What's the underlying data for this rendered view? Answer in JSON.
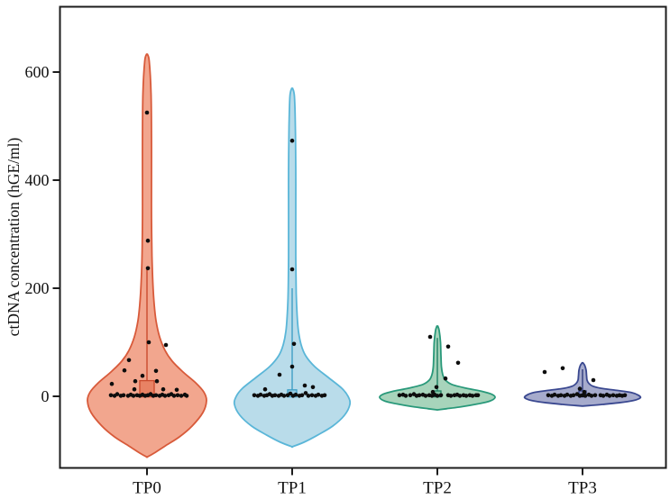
{
  "figure": {
    "background": "#ffffff",
    "frame_color": "#1c1c1c"
  },
  "chart_data": {
    "type": "violin",
    "title": "",
    "xlabel": "",
    "ylabel": "ctDNA concentration (hGE/ml)",
    "categories": [
      "TP0",
      "TP1",
      "TP2",
      "TP3"
    ],
    "yticks": [
      0,
      200,
      400,
      600
    ],
    "ylim": [
      -130,
      720
    ],
    "grid": false,
    "legend": false,
    "point_color": "#0d0d0d",
    "groups": [
      {
        "name": "TP0",
        "fill": "#f2a68e",
        "stroke": "#d85a3a",
        "box_fill": "#e88264",
        "box_stroke": "#c94a2d",
        "box": {
          "lo": -1,
          "hi": 29,
          "halfwidth": 8
        },
        "whisker": {
          "lo": 29,
          "hi": 237
        },
        "profile": [
          [
            633,
            0.5
          ],
          [
            620,
            2.5
          ],
          [
            560,
            4.5
          ],
          [
            480,
            5
          ],
          [
            400,
            5
          ],
          [
            330,
            5
          ],
          [
            260,
            5.5
          ],
          [
            210,
            6.5
          ],
          [
            170,
            8
          ],
          [
            140,
            10
          ],
          [
            110,
            14
          ],
          [
            85,
            20
          ],
          [
            65,
            28
          ],
          [
            45,
            40
          ],
          [
            25,
            54
          ],
          [
            8,
            63
          ],
          [
            -8,
            66
          ],
          [
            -30,
            62
          ],
          [
            -55,
            50
          ],
          [
            -75,
            36
          ],
          [
            -92,
            20
          ],
          [
            -105,
            8
          ],
          [
            -112,
            0.5
          ]
        ],
        "points": [
          [
            0,
            525
          ],
          [
            1,
            288
          ],
          [
            1,
            237
          ],
          [
            2,
            100
          ],
          [
            21,
            95
          ],
          [
            -20,
            67
          ],
          [
            -25,
            48
          ],
          [
            10,
            47
          ],
          [
            -5,
            38
          ],
          [
            -13,
            28
          ],
          [
            11,
            28
          ],
          [
            -39,
            23
          ],
          [
            -14,
            13
          ],
          [
            18,
            13
          ],
          [
            33,
            12
          ],
          [
            -40,
            2
          ],
          [
            -36,
            1
          ],
          [
            -33,
            4
          ],
          [
            -29,
            1
          ],
          [
            -26,
            2
          ],
          [
            -21,
            1
          ],
          [
            -18,
            3
          ],
          [
            -15,
            1
          ],
          [
            -11,
            2
          ],
          [
            -8,
            1
          ],
          [
            -5,
            3
          ],
          [
            -2,
            1
          ],
          [
            1,
            2
          ],
          [
            4,
            4
          ],
          [
            7,
            1
          ],
          [
            10,
            2
          ],
          [
            14,
            1
          ],
          [
            17,
            3
          ],
          [
            20,
            1
          ],
          [
            24,
            2
          ],
          [
            27,
            4
          ],
          [
            30,
            1
          ],
          [
            34,
            2
          ],
          [
            38,
            1
          ],
          [
            42,
            3
          ],
          [
            44,
            1
          ]
        ]
      },
      {
        "name": "TP1",
        "fill": "#b9dcea",
        "stroke": "#5ab6d8",
        "box_fill": "#93c9e0",
        "box_stroke": "#3f9fc6",
        "box": {
          "lo": -1,
          "hi": 12,
          "halfwidth": 5
        },
        "whisker": {
          "lo": 12,
          "hi": 200
        },
        "profile": [
          [
            570,
            0.5
          ],
          [
            555,
            2.5
          ],
          [
            500,
            3.5
          ],
          [
            420,
            4
          ],
          [
            340,
            4
          ],
          [
            260,
            4
          ],
          [
            190,
            4.5
          ],
          [
            150,
            5.5
          ],
          [
            120,
            7
          ],
          [
            95,
            10
          ],
          [
            75,
            15
          ],
          [
            55,
            25
          ],
          [
            35,
            40
          ],
          [
            15,
            55
          ],
          [
            0,
            62
          ],
          [
            -15,
            64
          ],
          [
            -35,
            58
          ],
          [
            -55,
            45
          ],
          [
            -72,
            28
          ],
          [
            -85,
            13
          ],
          [
            -93,
            0.5
          ]
        ],
        "points": [
          [
            0,
            473
          ],
          [
            0,
            235
          ],
          [
            2,
            97
          ],
          [
            0,
            55
          ],
          [
            -14,
            40
          ],
          [
            14,
            20
          ],
          [
            23,
            17
          ],
          [
            -30,
            13
          ],
          [
            -42,
            2
          ],
          [
            -38,
            1
          ],
          [
            -35,
            3
          ],
          [
            -31,
            1
          ],
          [
            -28,
            2
          ],
          [
            -25,
            4
          ],
          [
            -22,
            1
          ],
          [
            -19,
            2
          ],
          [
            -15,
            1
          ],
          [
            -12,
            3
          ],
          [
            -9,
            1
          ],
          [
            -5,
            2
          ],
          [
            -2,
            5
          ],
          [
            1,
            1
          ],
          [
            4,
            3
          ],
          [
            8,
            1
          ],
          [
            11,
            2
          ],
          [
            15,
            6
          ],
          [
            18,
            1
          ],
          [
            22,
            2
          ],
          [
            26,
            1
          ],
          [
            29,
            3
          ],
          [
            33,
            1
          ],
          [
            36,
            2
          ]
        ]
      },
      {
        "name": "TP2",
        "fill": "#a7d4bb",
        "stroke": "#29997a",
        "box_fill": "#82c2a3",
        "box_stroke": "#1f8265",
        "box": {
          "lo": -1,
          "hi": 10,
          "halfwidth": 4
        },
        "whisker": {
          "lo": 10,
          "hi": 108
        },
        "profile": [
          [
            130,
            0.5
          ],
          [
            122,
            2
          ],
          [
            100,
            3.5
          ],
          [
            75,
            4
          ],
          [
            55,
            4.5
          ],
          [
            40,
            6
          ],
          [
            30,
            9
          ],
          [
            22,
            16
          ],
          [
            15,
            32
          ],
          [
            9,
            50
          ],
          [
            4,
            60
          ],
          [
            -2,
            64
          ],
          [
            -9,
            58
          ],
          [
            -14,
            45
          ],
          [
            -19,
            28
          ],
          [
            -23,
            10
          ],
          [
            -25,
            0.5
          ]
        ],
        "points": [
          [
            -8,
            110
          ],
          [
            12,
            92
          ],
          [
            23,
            62
          ],
          [
            9,
            33
          ],
          [
            -1,
            17
          ],
          [
            -5,
            8
          ],
          [
            -42,
            2
          ],
          [
            -38,
            3
          ],
          [
            -35,
            1
          ],
          [
            -30,
            2
          ],
          [
            -26,
            4
          ],
          [
            -23,
            1
          ],
          [
            -20,
            2
          ],
          [
            -16,
            3
          ],
          [
            -13,
            1
          ],
          [
            -9,
            2
          ],
          [
            -6,
            1
          ],
          [
            -3,
            3
          ],
          [
            0,
            1
          ],
          [
            4,
            2
          ],
          [
            12,
            2
          ],
          [
            15,
            1
          ],
          [
            19,
            2
          ],
          [
            22,
            3
          ],
          [
            25,
            1
          ],
          [
            29,
            2
          ],
          [
            32,
            1
          ],
          [
            36,
            2
          ],
          [
            39,
            1
          ],
          [
            43,
            2
          ],
          [
            45,
            2
          ]
        ]
      },
      {
        "name": "TP3",
        "fill": "#a6abcc",
        "stroke": "#3a4890",
        "box_fill": "#8a91be",
        "box_stroke": "#2e3a7c",
        "box": {
          "lo": -1,
          "hi": 10,
          "halfwidth": 4
        },
        "whisker": {
          "lo": 10,
          "hi": 50
        },
        "profile": [
          [
            62,
            0.5
          ],
          [
            57,
            2.5
          ],
          [
            48,
            4
          ],
          [
            38,
            4.5
          ],
          [
            30,
            5
          ],
          [
            24,
            7
          ],
          [
            19,
            11
          ],
          [
            15,
            20
          ],
          [
            11,
            38
          ],
          [
            7,
            54
          ],
          [
            2,
            62
          ],
          [
            -3,
            64
          ],
          [
            -8,
            56
          ],
          [
            -12,
            40
          ],
          [
            -15,
            22
          ],
          [
            -17,
            8
          ],
          [
            -18,
            0.5
          ]
        ],
        "points": [
          [
            -42,
            45
          ],
          [
            -22,
            52
          ],
          [
            12,
            30
          ],
          [
            -3,
            14
          ],
          [
            2,
            8
          ],
          [
            -38,
            2
          ],
          [
            -34,
            1
          ],
          [
            -31,
            3
          ],
          [
            -27,
            1
          ],
          [
            -24,
            2
          ],
          [
            -20,
            1
          ],
          [
            -17,
            3
          ],
          [
            -13,
            1
          ],
          [
            -10,
            2
          ],
          [
            -6,
            4
          ],
          [
            -3,
            1
          ],
          [
            0,
            2
          ],
          [
            3,
            1
          ],
          [
            7,
            3
          ],
          [
            10,
            1
          ],
          [
            14,
            2
          ],
          [
            20,
            2
          ],
          [
            23,
            1
          ],
          [
            27,
            3
          ],
          [
            30,
            1
          ],
          [
            34,
            2
          ],
          [
            38,
            1
          ],
          [
            41,
            2
          ],
          [
            44,
            1
          ],
          [
            47,
            2
          ]
        ]
      }
    ]
  }
}
